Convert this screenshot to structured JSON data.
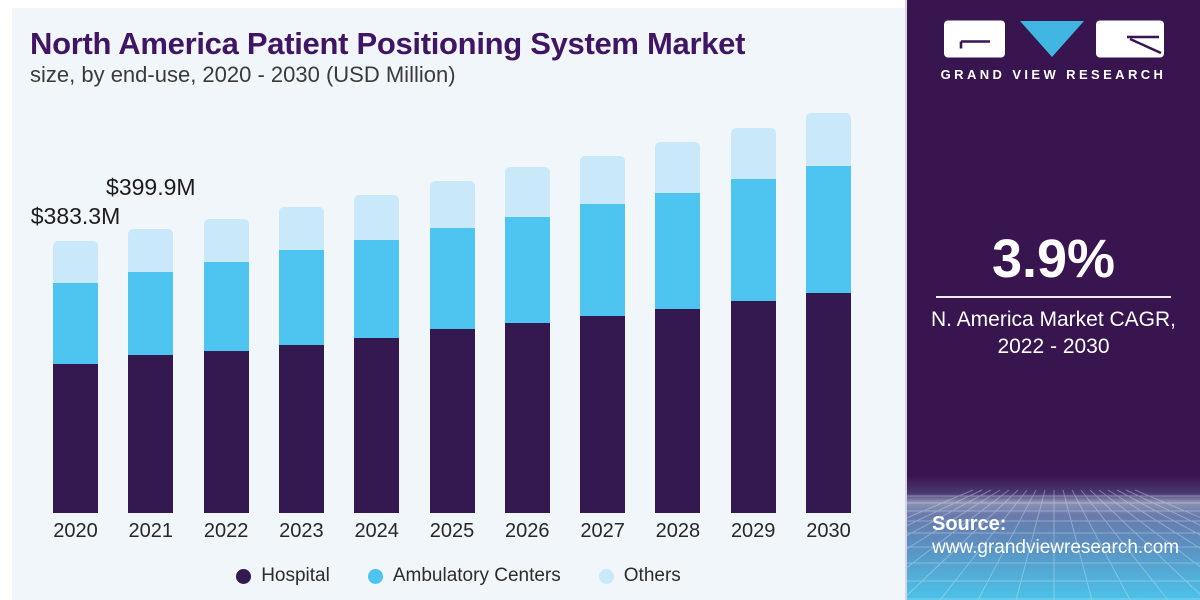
{
  "chart_data": {
    "type": "bar",
    "stacked": true,
    "title": "North America Patient Positioning System Market",
    "subtitle": "size, by end-use, 2020 - 2030 (USD Million)",
    "unit": "USD Million",
    "categories": [
      "2020",
      "2021",
      "2022",
      "2023",
      "2024",
      "2025",
      "2026",
      "2027",
      "2028",
      "2029",
      "2030"
    ],
    "series": [
      {
        "name": "Hospital",
        "color": "#33194f",
        "values": [
          210.1,
          222.9,
          228.6,
          237.0,
          246.9,
          259.6,
          268.1,
          277.9,
          287.8,
          299.1,
          310.4
        ]
      },
      {
        "name": "Ambulatory Centers",
        "color": "#4ec4f0",
        "values": [
          114.1,
          117.2,
          125.6,
          134.0,
          138.3,
          142.5,
          149.6,
          158.0,
          163.7,
          172.1,
          179.2
        ]
      },
      {
        "name": "Others",
        "color": "#c9e9fb",
        "values": [
          59.1,
          59.8,
          60.7,
          60.7,
          63.5,
          66.3,
          70.6,
          67.7,
          72.0,
          72.0,
          74.8
        ]
      }
    ],
    "totals": [
      383.3,
      399.9,
      414.9,
      431.7,
      448.7,
      468.4,
      488.3,
      503.6,
      523.5,
      543.2,
      564.4
    ],
    "annotations": [
      {
        "category": "2020",
        "label": "$383.3M"
      },
      {
        "category": "2021",
        "label": "$399.9M"
      }
    ],
    "legend": [
      "Hospital",
      "Ambulatory Centers",
      "Others"
    ],
    "legend_position": "bottom",
    "y_axis_visible": false,
    "x_axis_labels_visible": true
  },
  "sidebar": {
    "brand": "GRAND VIEW RESEARCH",
    "stat": {
      "value": "3.9%",
      "label_line1": "N. America Market CAGR,",
      "label_line2": "2022 - 2030"
    },
    "source": {
      "label": "Source:",
      "url": "www.grandviewresearch.com"
    },
    "colors": {
      "background": "#391550",
      "logo_triangle": "#41b6e3",
      "footer_gradient_end": "#4cc2e9"
    }
  },
  "page": {
    "background": "#ffffff",
    "card_background": "#f1f6fa",
    "title_color": "#401564"
  }
}
